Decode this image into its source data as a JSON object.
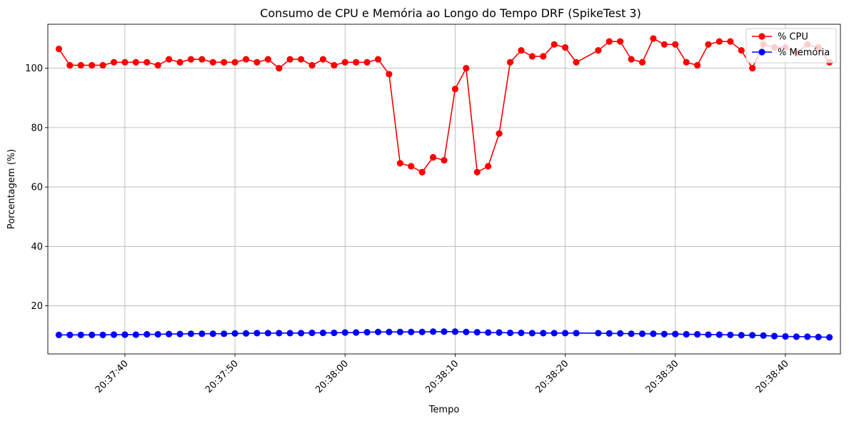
{
  "chart_data": {
    "type": "line",
    "title": "Consumo de CPU e Memória ao Longo do Tempo DRF (SpikeTest 3)",
    "xlabel": "Tempo",
    "ylabel": "Porcentagem (%)",
    "ylim": [
      3.8,
      114.8
    ],
    "xlim": [
      "20:37:33",
      "20:38:45"
    ],
    "y_ticks": [
      20,
      40,
      60,
      80,
      100
    ],
    "x_ticks": [
      "20:37:40",
      "20:37:50",
      "20:38:00",
      "20:38:10",
      "20:38:20",
      "20:38:30",
      "20:38:40"
    ],
    "grid": true,
    "legend_position": "top-right",
    "x": [
      "20:37:34",
      "20:37:35",
      "20:37:36",
      "20:37:37",
      "20:37:38",
      "20:37:39",
      "20:37:40",
      "20:37:41",
      "20:37:42",
      "20:37:43",
      "20:37:44",
      "20:37:45",
      "20:37:46",
      "20:37:47",
      "20:37:48",
      "20:37:49",
      "20:37:50",
      "20:37:51",
      "20:37:52",
      "20:37:53",
      "20:37:54",
      "20:37:55",
      "20:37:56",
      "20:37:57",
      "20:37:58",
      "20:37:59",
      "20:38:00",
      "20:38:01",
      "20:38:02",
      "20:38:03",
      "20:38:04",
      "20:38:05",
      "20:38:06",
      "20:38:07",
      "20:38:08",
      "20:38:09",
      "20:38:10",
      "20:38:11",
      "20:38:12",
      "20:38:13",
      "20:38:14",
      "20:38:15",
      "20:38:16",
      "20:38:17",
      "20:38:18",
      "20:38:19",
      "20:38:20",
      "20:38:21",
      "20:38:23",
      "20:38:24",
      "20:38:25",
      "20:38:26",
      "20:38:27",
      "20:38:28",
      "20:38:29",
      "20:38:30",
      "20:38:31",
      "20:38:32",
      "20:38:33",
      "20:38:34",
      "20:38:35",
      "20:38:36",
      "20:38:37",
      "20:38:38",
      "20:38:39",
      "20:38:40",
      "20:38:41",
      "20:38:42",
      "20:38:43",
      "20:38:44"
    ],
    "series": [
      {
        "name": "% CPU",
        "color": "#ff0000",
        "values": [
          106.5,
          101,
          101,
          101,
          101,
          102,
          102,
          102,
          102,
          101,
          103,
          102,
          103,
          103,
          102,
          102,
          102,
          103,
          102,
          103,
          100,
          103,
          103,
          101,
          103,
          101,
          102,
          102,
          102,
          103,
          98,
          68,
          67,
          65,
          70,
          69,
          93,
          100,
          65,
          67,
          78,
          102,
          106,
          104,
          104,
          108,
          107,
          102,
          106,
          109,
          109,
          103,
          102,
          110,
          108,
          108,
          102,
          101,
          108,
          109,
          109,
          106,
          100,
          108,
          107,
          107,
          105,
          108,
          107,
          102
        ]
      },
      {
        "name": "% Memória",
        "color": "#0000ff",
        "values": [
          10.2,
          10.2,
          10.2,
          10.2,
          10.2,
          10.3,
          10.3,
          10.3,
          10.4,
          10.4,
          10.5,
          10.5,
          10.6,
          10.6,
          10.6,
          10.6,
          10.7,
          10.7,
          10.8,
          10.8,
          10.8,
          10.8,
          10.8,
          10.9,
          10.9,
          10.9,
          11.0,
          11.0,
          11.1,
          11.2,
          11.2,
          11.2,
          11.2,
          11.2,
          11.3,
          11.3,
          11.3,
          11.2,
          11.1,
          11.0,
          11.0,
          10.9,
          10.9,
          10.8,
          10.8,
          10.8,
          10.8,
          10.8,
          10.8,
          10.7,
          10.7,
          10.6,
          10.6,
          10.6,
          10.5,
          10.5,
          10.4,
          10.4,
          10.3,
          10.3,
          10.2,
          10.1,
          10.1,
          10.0,
          9.8,
          9.7,
          9.6,
          9.6,
          9.5,
          9.4
        ]
      }
    ]
  }
}
